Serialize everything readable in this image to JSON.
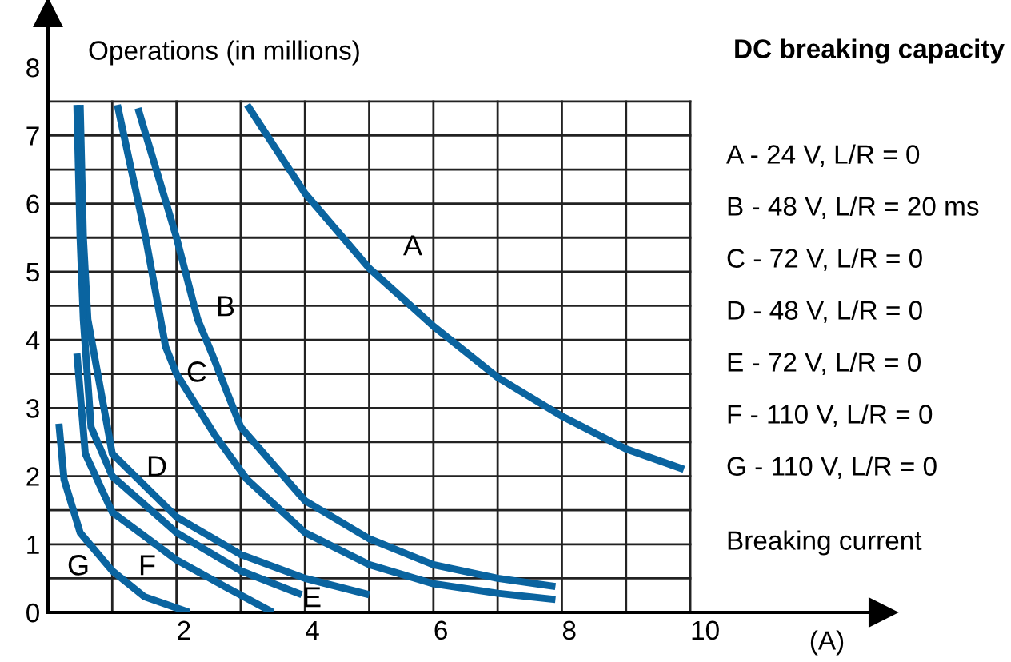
{
  "chart_data": {
    "type": "line",
    "title": "DC breaking capacity",
    "ylabel": "Operations (in millions)",
    "xlabel": "(A)",
    "xlim": [
      0,
      13
    ],
    "ylim": [
      0,
      8.8
    ],
    "xticks": [
      {
        "value": 0,
        "label": null
      },
      {
        "value": 1,
        "label": null
      },
      2,
      {
        "value": 3,
        "label": null
      },
      4,
      {
        "value": 5,
        "label": null
      },
      6,
      {
        "value": 7,
        "label": null
      },
      8,
      {
        "value": 9,
        "label": null
      },
      10
    ],
    "yticks": [
      0,
      {
        "value": 0.5,
        "label": null
      },
      1,
      {
        "value": 1.5,
        "label": null
      },
      2,
      {
        "value": 2.5,
        "label": null
      },
      3,
      {
        "value": 3.5,
        "label": null
      },
      4,
      {
        "value": 4.5,
        "label": null
      },
      5,
      {
        "value": 5.5,
        "label": null
      },
      6,
      {
        "value": 6.5,
        "label": null
      },
      7,
      {
        "value": 7.5,
        "label": null
      },
      8
    ],
    "grid": true,
    "series": [
      {
        "color": "#0a64a0",
        "x": [
          3.1,
          4.0,
          5.0,
          6.0,
          7.0,
          8.0,
          9.0,
          9.9
        ],
        "values": [
          7.45,
          6.15,
          5.05,
          4.2,
          3.45,
          2.88,
          2.4,
          2.1
        ]
      },
      {
        "color": "#0a64a0",
        "x": [
          1.4,
          2.0,
          2.33,
          2.55,
          3.0,
          4.0,
          5.0,
          6.0,
          7.0,
          7.9
        ],
        "values": [
          7.4,
          5.5,
          4.3,
          3.8,
          2.72,
          1.64,
          1.08,
          0.7,
          0.5,
          0.38
        ]
      },
      {
        "color": "#0a64a0",
        "x": [
          1.08,
          1.5,
          1.83,
          2.0,
          2.6,
          3.1,
          4.0,
          5.0,
          6.0,
          7.0,
          7.9
        ],
        "values": [
          7.45,
          5.6,
          3.9,
          3.5,
          2.6,
          1.95,
          1.17,
          0.7,
          0.42,
          0.28,
          0.19
        ]
      },
      {
        "color": "#0a64a0",
        "x": [
          0.5,
          0.55,
          0.62,
          1.0,
          2.0,
          3.0,
          4.0,
          5.0
        ],
        "values": [
          7.45,
          5.5,
          4.3,
          2.33,
          1.4,
          0.85,
          0.5,
          0.26
        ]
      },
      {
        "color": "#0a64a0",
        "x": [
          0.45,
          0.5,
          0.55,
          0.67,
          1.0,
          2.0,
          3.0,
          3.95
        ],
        "values": [
          7.45,
          5.5,
          4.3,
          2.72,
          2.0,
          1.17,
          0.61,
          0.26
        ]
      },
      {
        "color": "#0a64a0",
        "x": [
          0.45,
          0.58,
          1.0,
          2.0,
          2.75,
          3.5
        ],
        "values": [
          3.8,
          2.33,
          1.47,
          0.77,
          0.38,
          0.0
        ]
      },
      {
        "color": "#0a64a0",
        "x": [
          0.17,
          0.25,
          0.5,
          1.0,
          1.5,
          2.2
        ],
        "values": [
          2.77,
          1.95,
          1.17,
          0.61,
          0.23,
          0.0
        ]
      }
    ],
    "annotations": [
      "A",
      "B",
      "C",
      "D",
      "E",
      "F",
      "G",
      "A - 24 V, L/R = 0",
      "B - 48 V, L/R = 20 ms",
      "C - 72 V, L/R = 0",
      "D - 48 V, L/R = 0",
      "E - 72 V, L/R = 0",
      "F - 110 V, L/R = 0",
      "G - 110 V, L/R = 0",
      "Breaking current"
    ]
  }
}
